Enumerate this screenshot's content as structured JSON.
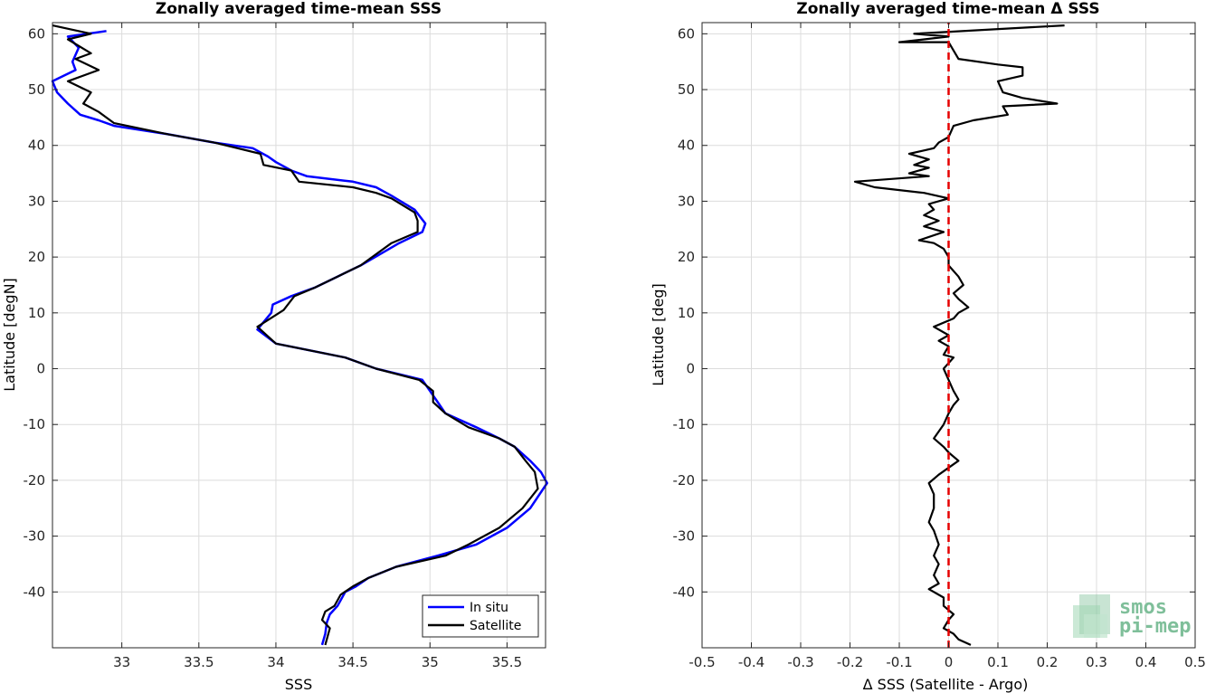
{
  "chart_data": [
    {
      "type": "line",
      "title": "Zonally averaged time-mean SSS",
      "xlabel": "SSS",
      "ylabel": "Latitude [degN]",
      "xlim": [
        32.55,
        35.75
      ],
      "ylim": [
        -50,
        62
      ],
      "xticks": [
        33,
        33.5,
        34,
        34.5,
        35,
        35.5
      ],
      "xtick_labels": [
        "33",
        "33.5",
        "34",
        "34.5",
        "35",
        "35.5"
      ],
      "yticks": [
        60,
        50,
        40,
        30,
        20,
        10,
        0,
        -10,
        -20,
        -30,
        -40
      ],
      "ytick_labels": [
        "60",
        "50",
        "40",
        "30",
        "20",
        "10",
        "0",
        "-10",
        "-20",
        "-30",
        "-40"
      ],
      "grid": true,
      "legend": "bottom-right",
      "series": [
        {
          "name": "In situ",
          "color": "#0000ff",
          "points": [
            [
              32.9,
              60.5
            ],
            [
              32.65,
              59.5
            ],
            [
              32.72,
              57.5
            ],
            [
              32.68,
              55
            ],
            [
              32.7,
              53.5
            ],
            [
              32.55,
              51.5
            ],
            [
              32.58,
              49.5
            ],
            [
              32.65,
              47.5
            ],
            [
              32.73,
              45.5
            ],
            [
              32.85,
              44.5
            ],
            [
              32.95,
              43.5
            ],
            [
              33.3,
              42
            ],
            [
              33.6,
              40.5
            ],
            [
              33.85,
              39.5
            ],
            [
              33.95,
              38
            ],
            [
              34.0,
              37
            ],
            [
              34.1,
              35.5
            ],
            [
              34.2,
              34.5
            ],
            [
              34.5,
              33.5
            ],
            [
              34.65,
              32.5
            ],
            [
              34.75,
              31
            ],
            [
              34.9,
              28.5
            ],
            [
              34.97,
              26
            ],
            [
              34.95,
              24.5
            ],
            [
              34.8,
              22.5
            ],
            [
              34.55,
              18.5
            ],
            [
              34.4,
              16.5
            ],
            [
              34.25,
              14.5
            ],
            [
              34.1,
              13
            ],
            [
              33.98,
              11.5
            ],
            [
              33.97,
              10
            ],
            [
              33.88,
              7
            ],
            [
              34.0,
              4.5
            ],
            [
              34.45,
              2
            ],
            [
              34.65,
              0
            ],
            [
              34.95,
              -2
            ],
            [
              35.0,
              -4
            ],
            [
              35.05,
              -6
            ],
            [
              35.1,
              -8
            ],
            [
              35.3,
              -10.5
            ],
            [
              35.45,
              -12.5
            ],
            [
              35.55,
              -14
            ],
            [
              35.65,
              -16.5
            ],
            [
              35.72,
              -18.5
            ],
            [
              35.76,
              -20.5
            ],
            [
              35.65,
              -25
            ],
            [
              35.5,
              -28.5
            ],
            [
              35.3,
              -31.5
            ],
            [
              35.05,
              -33.5
            ],
            [
              34.78,
              -35.5
            ],
            [
              34.6,
              -37.5
            ],
            [
              34.52,
              -39
            ],
            [
              34.45,
              -40
            ],
            [
              34.4,
              -42.5
            ],
            [
              34.35,
              -44
            ],
            [
              34.33,
              -45.5
            ],
            [
              34.32,
              -47.5
            ],
            [
              34.3,
              -49.5
            ]
          ]
        },
        {
          "name": "Satellite",
          "color": "#000000",
          "points": [
            [
              32.55,
              61.5
            ],
            [
              32.8,
              60
            ],
            [
              32.65,
              59
            ],
            [
              32.8,
              56.5
            ],
            [
              32.7,
              55.5
            ],
            [
              32.85,
              53.5
            ],
            [
              32.65,
              51.5
            ],
            [
              32.8,
              49.5
            ],
            [
              32.75,
              47.5
            ],
            [
              32.85,
              46
            ],
            [
              32.95,
              44
            ],
            [
              33.3,
              42
            ],
            [
              33.6,
              40.5
            ],
            [
              33.9,
              38.5
            ],
            [
              33.92,
              36.5
            ],
            [
              34.1,
              35.5
            ],
            [
              34.15,
              33.5
            ],
            [
              34.5,
              32.5
            ],
            [
              34.65,
              31.5
            ],
            [
              34.75,
              30.5
            ],
            [
              34.9,
              28
            ],
            [
              34.92,
              26.5
            ],
            [
              34.92,
              24.5
            ],
            [
              34.75,
              22.5
            ],
            [
              34.55,
              18.5
            ],
            [
              34.4,
              16.5
            ],
            [
              34.25,
              14.5
            ],
            [
              34.12,
              13
            ],
            [
              34.05,
              10.5
            ],
            [
              33.88,
              7.5
            ],
            [
              34.0,
              4.5
            ],
            [
              34.45,
              2
            ],
            [
              34.65,
              0
            ],
            [
              34.93,
              -2
            ],
            [
              35.02,
              -4
            ],
            [
              35.02,
              -6
            ],
            [
              35.1,
              -8
            ],
            [
              35.25,
              -10.5
            ],
            [
              35.45,
              -12.5
            ],
            [
              35.55,
              -14
            ],
            [
              35.62,
              -16.5
            ],
            [
              35.68,
              -18.5
            ],
            [
              35.7,
              -21.5
            ],
            [
              35.6,
              -25
            ],
            [
              35.45,
              -28.5
            ],
            [
              35.25,
              -31.5
            ],
            [
              35.1,
              -33.5
            ],
            [
              34.78,
              -35.5
            ],
            [
              34.6,
              -37.5
            ],
            [
              34.5,
              -39
            ],
            [
              34.42,
              -40.5
            ],
            [
              34.38,
              -42.5
            ],
            [
              34.32,
              -43.5
            ],
            [
              34.3,
              -45
            ],
            [
              34.35,
              -46.5
            ],
            [
              34.32,
              -49.5
            ]
          ]
        }
      ]
    },
    {
      "type": "line",
      "title": "Zonally averaged time-mean Δ SSS",
      "xlabel": "Δ SSS (Satellite - Argo)",
      "ylabel": "Latitude [deg]",
      "xlim": [
        -0.5,
        0.5
      ],
      "ylim": [
        -50,
        62
      ],
      "xticks": [
        -0.5,
        -0.4,
        -0.3,
        -0.2,
        -0.1,
        0,
        0.1,
        0.2,
        0.3,
        0.4,
        0.5
      ],
      "xtick_labels": [
        "-0.5",
        "-0.4",
        "-0.3",
        "-0.2",
        "-0.1",
        "0",
        "0.1",
        "0.2",
        "0.3",
        "0.4",
        "0.5"
      ],
      "yticks": [
        60,
        50,
        40,
        30,
        20,
        10,
        0,
        -10,
        -20,
        -30,
        -40
      ],
      "ytick_labels": [
        "60",
        "50",
        "40",
        "30",
        "20",
        "10",
        "0",
        "-10",
        "-20",
        "-30",
        "-40"
      ],
      "grid": true,
      "series": [
        {
          "color": "#000000",
          "points": [
            [
              0.235,
              61.5
            ],
            [
              -0.07,
              60
            ],
            [
              0.0,
              59.5
            ],
            [
              -0.1,
              58.5
            ],
            [
              0.0,
              58.5
            ],
            [
              0.02,
              55.5
            ],
            [
              0.1,
              54.5
            ],
            [
              0.15,
              54.0
            ],
            [
              0.15,
              52.5
            ],
            [
              0.1,
              51.5
            ],
            [
              0.11,
              49.5
            ],
            [
              0.15,
              48.5
            ],
            [
              0.22,
              47.5
            ],
            [
              0.11,
              47
            ],
            [
              0.12,
              45.5
            ],
            [
              0.05,
              44.5
            ],
            [
              0.01,
              43.5
            ],
            [
              0.0,
              41.5
            ],
            [
              -0.02,
              40.5
            ],
            [
              -0.03,
              39.5
            ],
            [
              -0.08,
              38.5
            ],
            [
              -0.04,
              37.5
            ],
            [
              -0.07,
              36.5
            ],
            [
              -0.04,
              36
            ],
            [
              -0.08,
              35
            ],
            [
              -0.04,
              34.5
            ],
            [
              -0.19,
              33.5
            ],
            [
              -0.15,
              32.5
            ],
            [
              -0.05,
              31.5
            ],
            [
              0.0,
              30.5
            ],
            [
              -0.04,
              29.5
            ],
            [
              -0.03,
              28.5
            ],
            [
              -0.05,
              27.5
            ],
            [
              -0.02,
              26.5
            ],
            [
              -0.05,
              25.5
            ],
            [
              -0.01,
              24.5
            ],
            [
              -0.06,
              23
            ],
            [
              -0.03,
              22.5
            ],
            [
              -0.01,
              21.5
            ],
            [
              0.0,
              20
            ],
            [
              0.0,
              18.5
            ],
            [
              0.02,
              16.5
            ],
            [
              0.03,
              15
            ],
            [
              0.01,
              13.5
            ],
            [
              0.02,
              12.5
            ],
            [
              0.04,
              11
            ],
            [
              0.02,
              10
            ],
            [
              0.01,
              9
            ],
            [
              -0.03,
              7.5
            ],
            [
              0.0,
              6
            ],
            [
              -0.02,
              5
            ],
            [
              0.0,
              4
            ],
            [
              -0.01,
              2.5
            ],
            [
              0.01,
              2
            ],
            [
              -0.01,
              0
            ],
            [
              0.0,
              -2
            ],
            [
              0.01,
              -4
            ],
            [
              0.02,
              -5.5
            ],
            [
              0.01,
              -6.5
            ],
            [
              0.0,
              -8
            ],
            [
              -0.01,
              -10
            ],
            [
              -0.03,
              -12.5
            ],
            [
              -0.01,
              -14
            ],
            [
              0.0,
              -15
            ],
            [
              0.02,
              -16.5
            ],
            [
              -0.02,
              -19
            ],
            [
              -0.04,
              -20.5
            ],
            [
              -0.03,
              -22.5
            ],
            [
              -0.03,
              -25
            ],
            [
              -0.04,
              -27.5
            ],
            [
              -0.03,
              -29
            ],
            [
              -0.02,
              -31.5
            ],
            [
              -0.03,
              -33.5
            ],
            [
              -0.02,
              -35
            ],
            [
              -0.03,
              -37
            ],
            [
              -0.02,
              -38.5
            ],
            [
              -0.04,
              -39.5
            ],
            [
              -0.01,
              -41
            ],
            [
              -0.01,
              -42.5
            ],
            [
              0.01,
              -44
            ],
            [
              0.0,
              -45
            ],
            [
              -0.01,
              -46.5
            ],
            [
              0.01,
              -47.5
            ],
            [
              0.02,
              -48.5
            ],
            [
              0.045,
              -49.5
            ]
          ]
        },
        {
          "color": "#e60000",
          "style": "dashed",
          "points": [
            [
              0,
              -50
            ],
            [
              0,
              62
            ]
          ]
        }
      ]
    }
  ],
  "legend": {
    "items": [
      "In situ",
      "Satellite"
    ]
  },
  "logo": {
    "line1": "smos",
    "line2": "pi-mep",
    "color": "#7fbf9a"
  }
}
